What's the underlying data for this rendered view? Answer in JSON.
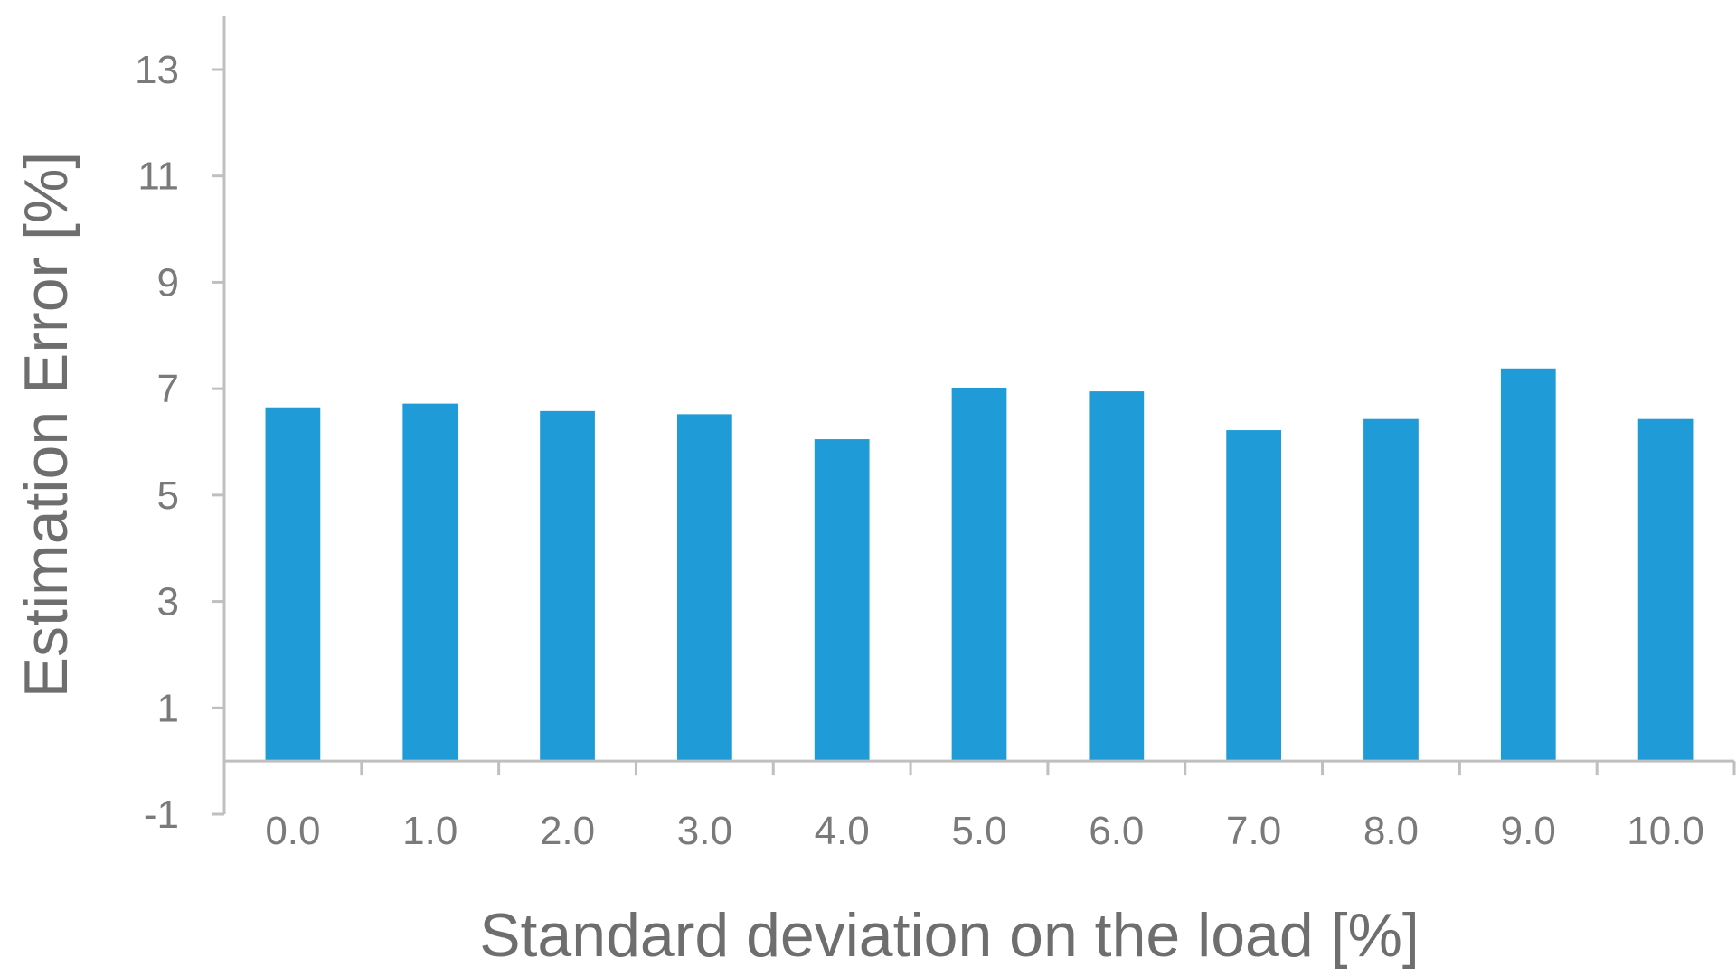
{
  "chart_data": {
    "type": "bar",
    "categories": [
      "0.0",
      "1.0",
      "2.0",
      "3.0",
      "4.0",
      "5.0",
      "6.0",
      "7.0",
      "8.0",
      "9.0",
      "10.0"
    ],
    "values": [
      6.65,
      6.72,
      6.58,
      6.52,
      6.05,
      7.02,
      6.95,
      6.22,
      6.43,
      7.38,
      6.43
    ],
    "xlabel": "Standard deviation on the load [%]",
    "ylabel": "Estimation Error [%]",
    "ylim": [
      -1,
      13
    ],
    "yticks": [
      "13",
      "11",
      "9",
      "7",
      "5",
      "3",
      "1",
      "-1"
    ],
    "bar_color": "#1f9bd7",
    "axis_color": "#bfbfbf",
    "label_color": "#7a7a7a",
    "grid": false,
    "legend": "none"
  }
}
